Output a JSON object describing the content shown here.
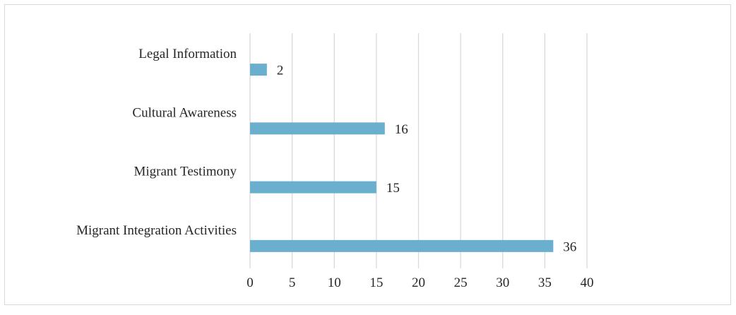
{
  "chart_data": {
    "type": "bar",
    "orientation": "horizontal",
    "title": "",
    "xlabel": "",
    "ylabel": "",
    "categories": [
      "Legal Information",
      "Cultural Awareness",
      "Migrant Testimony",
      "Migrant Integration Activities"
    ],
    "values": [
      2,
      16,
      15,
      36
    ],
    "xlim": [
      0,
      40
    ],
    "xticks": [
      "0",
      "5",
      "10",
      "15",
      "20",
      "25",
      "30",
      "35",
      "40"
    ],
    "grid": "vertical",
    "legend": "none",
    "data_labels": true,
    "bar_color": "#6AB0CE",
    "grid_color": "#D9D9D9",
    "text_color": "#262626"
  }
}
